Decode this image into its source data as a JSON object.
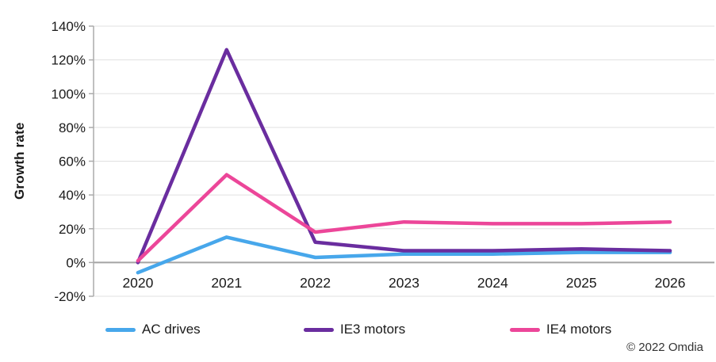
{
  "chart_data": {
    "type": "line",
    "title": "",
    "ylabel": "Growth rate",
    "xlabel": "",
    "categories": [
      "2020",
      "2021",
      "2022",
      "2023",
      "2024",
      "2025",
      "2026"
    ],
    "series": [
      {
        "name": "AC drives",
        "color": "#47A7EB",
        "values": [
          -6,
          15,
          3,
          5,
          5,
          6,
          6
        ]
      },
      {
        "name": "IE3 motors",
        "color": "#6A2D9F",
        "values": [
          0,
          126,
          12,
          7,
          7,
          8,
          7
        ]
      },
      {
        "name": "IE4 motors",
        "color": "#EC4699",
        "values": [
          1,
          52,
          18,
          24,
          23,
          23,
          24
        ]
      }
    ],
    "ylim": [
      -20,
      140
    ],
    "ytick_step": 20,
    "ytick_suffix": "%",
    "grid": "horizontal",
    "legend_position": "bottom"
  },
  "footer": {
    "copyright": "© 2022 Omdia"
  },
  "style": {
    "gridline_color": "#E0E0E0",
    "zero_line_color": "#A3A3A3",
    "axis_line_color": "#ABABAB",
    "text_color": "#1a1a1a",
    "line_width": 4.5
  }
}
